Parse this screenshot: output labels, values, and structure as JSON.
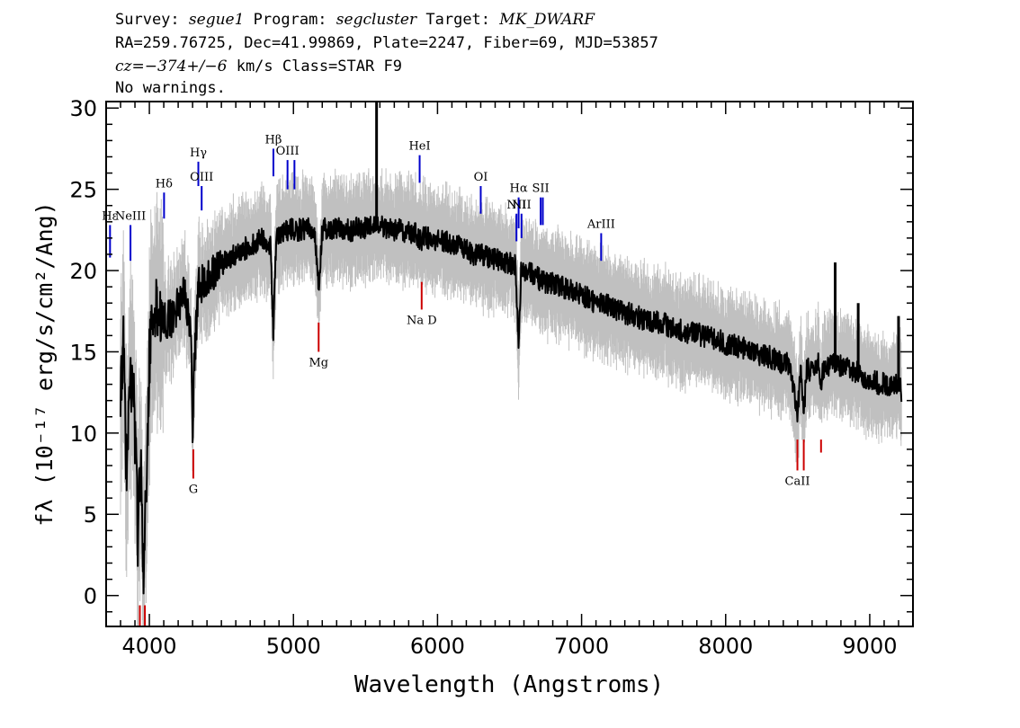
{
  "header": {
    "survey_label": "Survey:",
    "survey": "segue1",
    "program_label": "Program:",
    "program": "segcluster",
    "target_label": "Target:",
    "target": "MK_DWARF",
    "line2": "RA=259.76725, Dec=41.99869, Plate=2247, Fiber=69, MJD=53857",
    "cz": "cz=−374+/−6",
    "cz_rest": "km/s Class=STAR F9",
    "warnings": "No warnings."
  },
  "chart_data": {
    "type": "line",
    "xlabel": "Wavelength (Angstroms)",
    "ylabel": "fλ (10⁻¹⁷ erg/s/cm²/Ang)",
    "xlim": [
      3700,
      9300
    ],
    "ylim": [
      -1.9,
      30.4
    ],
    "xticks": [
      4000,
      5000,
      6000,
      7000,
      8000,
      9000
    ],
    "yticks": [
      0,
      5,
      10,
      15,
      20,
      25,
      30
    ],
    "colors": {
      "flux": "#000000",
      "error": "#c0c0c0",
      "emission": "#0000cc",
      "absorption": "#cc0000"
    },
    "series": [
      {
        "role": "flux",
        "x": [
          3800,
          3820,
          3840,
          3860,
          3880,
          3900,
          3920,
          3940,
          3960,
          3980,
          4000,
          4050,
          4100,
          4150,
          4200,
          4250,
          4290,
          4300,
          4310,
          4340,
          4400,
          4450,
          4500,
          4550,
          4600,
          4650,
          4700,
          4750,
          4800,
          4840,
          4861,
          4880,
          4920,
          4960,
          5000,
          5050,
          5100,
          5150,
          5175,
          5200,
          5250,
          5300,
          5350,
          5400,
          5450,
          5500,
          5550,
          5580,
          5600,
          5650,
          5700,
          5750,
          5800,
          5850,
          5890,
          5900,
          5950,
          6000,
          6050,
          6100,
          6150,
          6200,
          6250,
          6300,
          6350,
          6400,
          6450,
          6500,
          6540,
          6563,
          6580,
          6600,
          6650,
          6700,
          6750,
          6800,
          6850,
          6900,
          6950,
          7000,
          7050,
          7100,
          7150,
          7200,
          7250,
          7300,
          7350,
          7400,
          7450,
          7500,
          7550,
          7600,
          7650,
          7700,
          7750,
          7800,
          7850,
          7900,
          7950,
          8000,
          8050,
          8100,
          8150,
          8200,
          8250,
          8300,
          8350,
          8400,
          8450,
          8498,
          8520,
          8542,
          8560,
          8600,
          8640,
          8662,
          8680,
          8700,
          8750,
          8800,
          8850,
          8900,
          8950,
          9000,
          9050,
          9100,
          9150,
          9200,
          9220
        ],
        "y": [
          12.5,
          16.0,
          8.0,
          11.0,
          14.0,
          10.0,
          3.5,
          8.0,
          1.0,
          7.0,
          15.0,
          17.5,
          17.0,
          17.0,
          18.0,
          18.5,
          16.0,
          9.5,
          14.0,
          19.0,
          19.5,
          20.0,
          20.3,
          20.7,
          21.0,
          21.3,
          21.5,
          21.8,
          22.0,
          21.5,
          16.0,
          22.0,
          22.3,
          22.5,
          22.5,
          22.5,
          22.7,
          22.0,
          19.0,
          22.5,
          22.6,
          22.6,
          22.5,
          22.5,
          22.6,
          22.6,
          22.7,
          22.7,
          22.7,
          22.6,
          22.5,
          22.5,
          22.3,
          22.3,
          21.8,
          22.0,
          22.0,
          21.9,
          21.8,
          21.6,
          21.5,
          21.3,
          21.0,
          21.0,
          20.8,
          20.7,
          20.6,
          20.5,
          20.3,
          15.5,
          20.0,
          20.0,
          19.8,
          19.5,
          19.3,
          19.2,
          19.0,
          18.8,
          18.7,
          18.5,
          18.3,
          18.0,
          17.9,
          17.8,
          17.5,
          17.4,
          17.3,
          17.1,
          17.0,
          16.9,
          16.8,
          16.6,
          16.5,
          16.3,
          16.2,
          16.1,
          16.0,
          15.8,
          15.7,
          15.5,
          15.4,
          15.3,
          15.2,
          15.0,
          14.8,
          14.7,
          14.5,
          14.3,
          14.2,
          11.0,
          14.0,
          10.8,
          14.0,
          13.7,
          14.5,
          13.0,
          14.0,
          14.0,
          14.2,
          14.1,
          13.9,
          13.8,
          13.5,
          13.3,
          13.1,
          13.0,
          13.0,
          13.0,
          12.5
        ]
      }
    ],
    "line_labels": [
      {
        "label": "Hε",
        "wavelength": 3727,
        "kind": "emission",
        "y_top": 22.8,
        "y_bottom": 20.8
      },
      {
        "label": "NeIII",
        "wavelength": 3869,
        "kind": "emission",
        "y_top": 22.8,
        "y_bottom": 20.6
      },
      {
        "label": "Hδ",
        "wavelength": 4102,
        "kind": "emission",
        "y_top": 24.8,
        "y_bottom": 23.2
      },
      {
        "label": "Hγ",
        "wavelength": 4340,
        "kind": "emission",
        "y_top": 26.7,
        "y_bottom": 25.2
      },
      {
        "label": "OIII",
        "wavelength": 4363,
        "kind": "emission",
        "y_top": 25.2,
        "y_bottom": 23.7
      },
      {
        "label": "Hβ",
        "wavelength": 4861,
        "kind": "emission",
        "y_top": 27.5,
        "y_bottom": 25.8
      },
      {
        "label": "OIII",
        "wavelength": 4959,
        "kind": "emission",
        "y_top": 26.8,
        "y_bottom": 25.0
      },
      {
        "label": "",
        "wavelength": 5007,
        "kind": "emission",
        "y_top": 26.8,
        "y_bottom": 25.0
      },
      {
        "label": "HeI",
        "wavelength": 5876,
        "kind": "emission",
        "y_top": 27.1,
        "y_bottom": 25.4
      },
      {
        "label": "OI",
        "wavelength": 6300,
        "kind": "emission",
        "y_top": 25.2,
        "y_bottom": 23.5
      },
      {
        "label": "NII",
        "wavelength": 6548,
        "kind": "emission",
        "y_top": 23.5,
        "y_bottom": 21.8
      },
      {
        "label": "Hα",
        "wavelength": 6563,
        "kind": "emission",
        "y_top": 24.5,
        "y_bottom": 22.6
      },
      {
        "label": "NII",
        "wavelength": 6583,
        "kind": "emission",
        "y_top": 23.5,
        "y_bottom": 22.0
      },
      {
        "label": "SII",
        "wavelength": 6716,
        "kind": "emission",
        "y_top": 24.5,
        "y_bottom": 22.8
      },
      {
        "label": "",
        "wavelength": 6731,
        "kind": "emission",
        "y_top": 24.5,
        "y_bottom": 22.8
      },
      {
        "label": "ArIII",
        "wavelength": 7136,
        "kind": "emission",
        "y_top": 22.3,
        "y_bottom": 20.6
      },
      {
        "label": "Na D",
        "wavelength": 5890,
        "kind": "absorption",
        "y_top": 19.3,
        "y_bottom": 17.6
      },
      {
        "label": "Mg",
        "wavelength": 5175,
        "kind": "absorption",
        "y_top": 16.8,
        "y_bottom": 15.0
      },
      {
        "label": "G",
        "wavelength": 4305,
        "kind": "absorption",
        "y_top": 9.0,
        "y_bottom": 7.2
      },
      {
        "label": "CaII",
        "wavelength": 8498,
        "kind": "absorption",
        "y_top": 9.6,
        "y_bottom": 7.7
      },
      {
        "label": "",
        "wavelength": 8542,
        "kind": "absorption",
        "y_top": 9.6,
        "y_bottom": 7.7
      },
      {
        "label": "",
        "wavelength": 8662,
        "kind": "absorption",
        "y_top": 9.6,
        "y_bottom": 8.8
      },
      {
        "label": "",
        "wavelength": 3934,
        "kind": "absorption",
        "y_top": -0.6,
        "y_bottom": -1.9
      },
      {
        "label": "",
        "wavelength": 3969,
        "kind": "absorption",
        "y_top": -0.6,
        "y_bottom": -1.9
      }
    ],
    "spikes": [
      {
        "wavelength": 5577,
        "flux": 30.4
      },
      {
        "wavelength": 8760,
        "flux": 20.5
      },
      {
        "wavelength": 8920,
        "flux": 18.0
      },
      {
        "wavelength": 9200,
        "flux": 17.2
      }
    ],
    "grid": false,
    "legend": "none"
  }
}
